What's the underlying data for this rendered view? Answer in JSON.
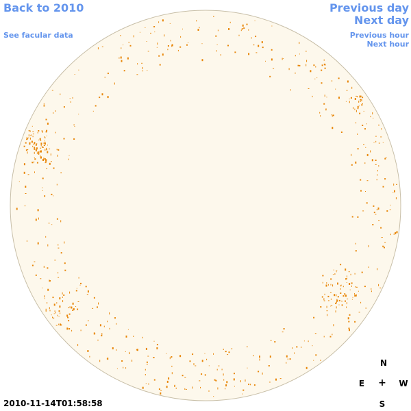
{
  "nav": {
    "back_label": "Back to 2010",
    "facular_label": "See facular data",
    "prev_day_label": "Previous day",
    "next_day_label": "Next day",
    "prev_hour_label": "Previous hour",
    "next_hour_label": "Next hour"
  },
  "compass": {
    "n": "N",
    "e": "E",
    "center": "+",
    "w": "W",
    "s": "S"
  },
  "timestamp": "2010-11-14T01:58:58",
  "colors": {
    "link": "#6495ed",
    "disk_fill": "#fdf8ec",
    "disk_edge": "#c8bfa8",
    "facula": "#e8870a"
  }
}
